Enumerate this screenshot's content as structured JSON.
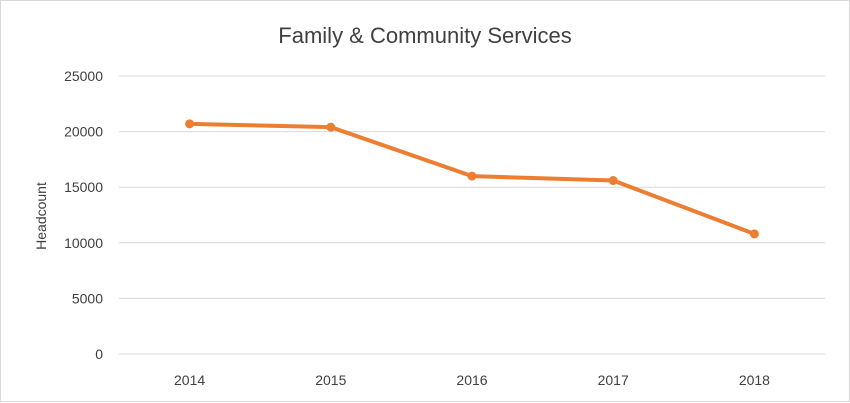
{
  "chart_data": {
    "type": "line",
    "title": "Family & Community Services",
    "xlabel": "",
    "ylabel": "Headcount",
    "categories": [
      "2014",
      "2015",
      "2016",
      "2017",
      "2018"
    ],
    "series": [
      {
        "values": [
          20700,
          20400,
          16000,
          15600,
          10800
        ],
        "color": "#ED7D31"
      }
    ],
    "ylim": [
      0,
      25000
    ],
    "yticks": [
      "0",
      "5000",
      "10000",
      "15000",
      "20000",
      "25000"
    ],
    "grid": true,
    "legend": "none"
  }
}
